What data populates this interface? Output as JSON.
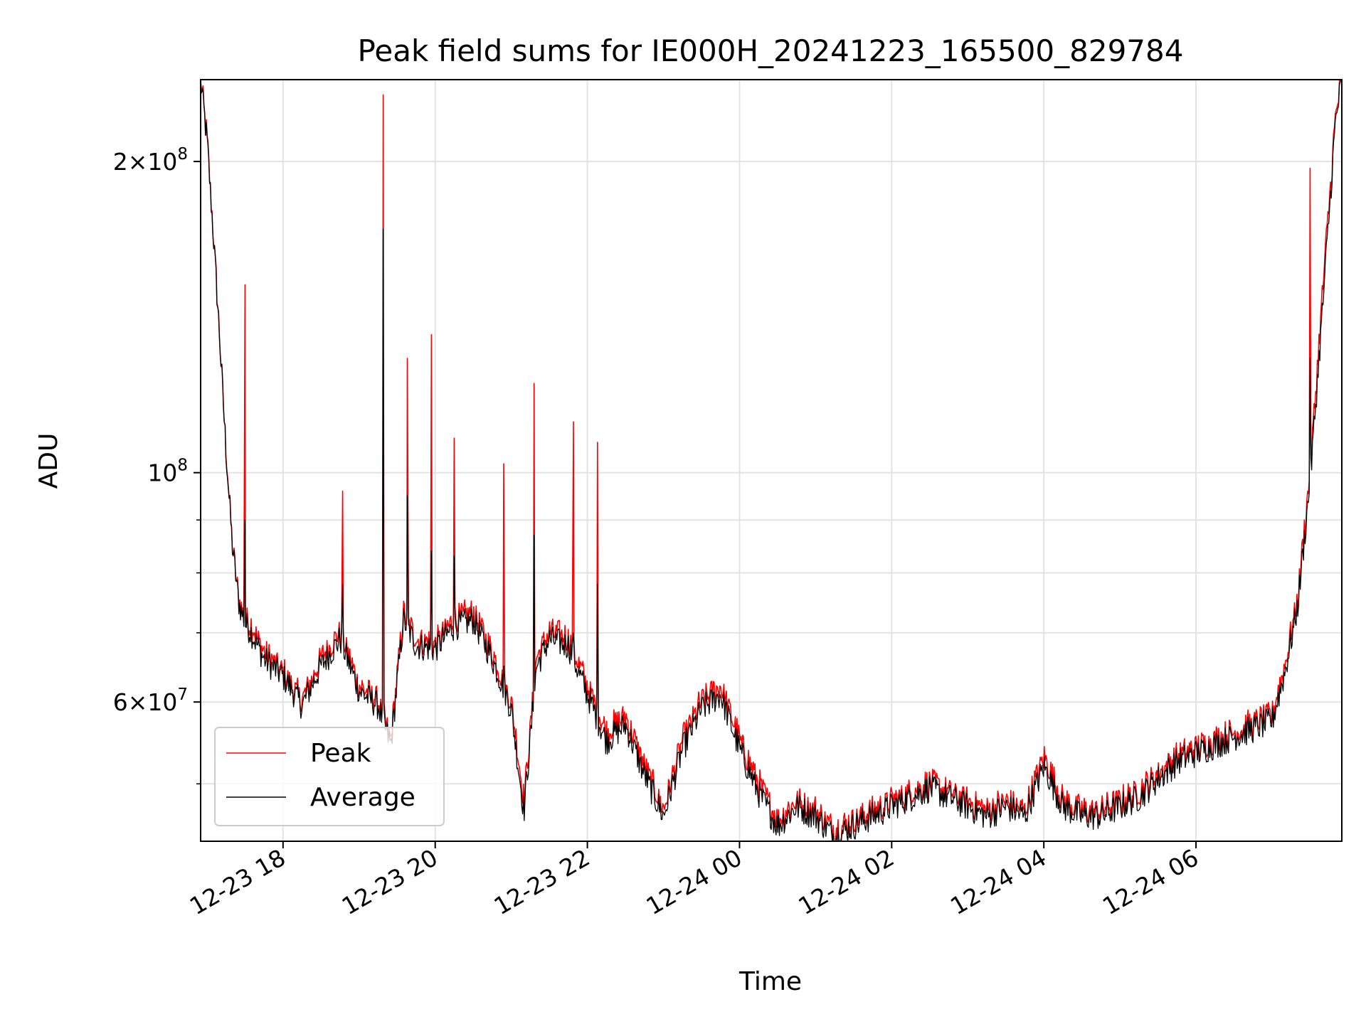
{
  "chart_data": {
    "type": "line",
    "title": "Peak field sums for IE000H_20241223_165500_829784",
    "xlabel": "Time",
    "ylabel": "ADU",
    "x_scale": "time",
    "y_scale": "log",
    "xlim": [
      "12-23 16:55",
      "12-24 07:55"
    ],
    "ylim": [
      44000000,
      240000000
    ],
    "grid": true,
    "legend_position": "lower-left",
    "x_tick_labels": [
      "12-23 18",
      "12-23 20",
      "12-23 22",
      "12-24 00",
      "12-24 02",
      "12-24 04",
      "12-24 06"
    ],
    "y_tick_labels": [
      {
        "value": 200000000,
        "mantissa": "2",
        "exponent": "8",
        "label": "2×10^8"
      },
      {
        "value": 100000000,
        "mantissa": "",
        "exponent": "8",
        "label": "10^8"
      },
      {
        "value": 60000000,
        "mantissa": "6",
        "exponent": "7",
        "label": "6×10^7"
      }
    ],
    "x": [
      "12-23 16:55",
      "12-23 17:00",
      "12-23 17:05",
      "12-23 17:10",
      "12-23 17:15",
      "12-23 17:20",
      "12-23 17:25",
      "12-23 17:30",
      "12-23 17:35",
      "12-23 17:45",
      "12-23 18:00",
      "12-23 18:15",
      "12-23 18:30",
      "12-23 18:45",
      "12-23 19:00",
      "12-23 19:15",
      "12-23 19:25",
      "12-23 19:35",
      "12-23 19:45",
      "12-23 20:00",
      "12-23 20:15",
      "12-23 20:30",
      "12-23 20:45",
      "12-23 20:55",
      "12-23 21:00",
      "12-23 21:10",
      "12-23 21:20",
      "12-23 21:30",
      "12-23 21:45",
      "12-23 22:00",
      "12-23 22:15",
      "12-23 22:30",
      "12-23 22:45",
      "12-23 23:00",
      "12-23 23:15",
      "12-23 23:30",
      "12-23 23:45",
      "12-24 00:00",
      "12-24 00:15",
      "12-24 00:30",
      "12-24 00:45",
      "12-24 01:00",
      "12-24 01:15",
      "12-24 01:30",
      "12-24 01:45",
      "12-24 02:00",
      "12-24 02:15",
      "12-24 02:30",
      "12-24 02:45",
      "12-24 03:00",
      "12-24 03:15",
      "12-24 03:30",
      "12-24 03:45",
      "12-24 04:00",
      "12-24 04:15",
      "12-24 04:30",
      "12-24 04:45",
      "12-24 05:00",
      "12-24 05:15",
      "12-24 05:30",
      "12-24 05:45",
      "12-24 06:00",
      "12-24 06:15",
      "12-24 06:30",
      "12-24 06:45",
      "12-24 07:00",
      "12-24 07:10",
      "12-24 07:20",
      "12-24 07:30",
      "12-24 07:40",
      "12-24 07:50",
      "12-24 07:55"
    ],
    "series": [
      {
        "name": "Peak",
        "color": "#ff0000",
        "values": [
          240000000,
          210000000,
          170000000,
          135000000,
          105000000,
          85000000,
          75000000,
          72000000,
          71000000,
          67000000,
          64000000,
          60000000,
          66000000,
          70000000,
          62000000,
          60000000,
          55000000,
          73000000,
          69000000,
          68000000,
          72000000,
          73000000,
          67000000,
          62000000,
          60000000,
          48000000,
          66000000,
          70000000,
          69000000,
          62000000,
          56000000,
          58000000,
          52000000,
          47000000,
          55000000,
          60000000,
          62000000,
          55000000,
          50000000,
          46000000,
          48000000,
          47000000,
          45000000,
          46000000,
          47000000,
          48000000,
          49000000,
          50000000,
          49000000,
          48000000,
          47000000,
          48000000,
          47000000,
          53000000,
          48000000,
          47000000,
          47000000,
          48000000,
          49000000,
          51000000,
          53000000,
          54000000,
          55000000,
          56000000,
          57000000,
          58000000,
          65000000,
          75000000,
          100000000,
          150000000,
          220000000,
          240000000
        ]
      },
      {
        "name": "Average",
        "color": "#000000",
        "values": [
          240000000,
          210000000,
          170000000,
          135000000,
          105000000,
          85000000,
          75000000,
          71500000,
          70000000,
          66000000,
          63500000,
          59500000,
          65000000,
          69000000,
          61500000,
          59500000,
          54500000,
          72000000,
          68000000,
          67500000,
          71000000,
          72000000,
          66000000,
          61500000,
          59000000,
          47000000,
          65000000,
          69000000,
          68000000,
          61000000,
          55000000,
          57000000,
          51000000,
          46500000,
          54000000,
          59000000,
          61000000,
          54000000,
          49000000,
          45500000,
          47500000,
          46500000,
          44500000,
          45500000,
          46500000,
          47500000,
          48500000,
          49500000,
          48500000,
          47500000,
          46500000,
          47500000,
          46500000,
          52000000,
          47500000,
          46500000,
          46500000,
          47500000,
          48500000,
          50500000,
          52500000,
          53500000,
          54500000,
          55500000,
          56500000,
          57500000,
          64000000,
          74000000,
          98000000,
          145000000,
          218000000,
          240000000
        ]
      }
    ],
    "spikes": [
      {
        "x": "12-23 17:30",
        "peak": 152000000,
        "average": 90000000
      },
      {
        "x": "12-23 18:47",
        "peak": 96000000,
        "average": 78000000
      },
      {
        "x": "12-23 19:19",
        "peak": 232000000,
        "average": 172000000
      },
      {
        "x": "12-23 19:38",
        "peak": 129000000,
        "average": 95000000
      },
      {
        "x": "12-23 19:57",
        "peak": 136000000,
        "average": 84000000
      },
      {
        "x": "12-23 20:15",
        "peak": 108000000,
        "average": 83000000
      },
      {
        "x": "12-23 20:54",
        "peak": 102000000,
        "average": 65000000
      },
      {
        "x": "12-23 21:18",
        "peak": 122000000,
        "average": 87000000
      },
      {
        "x": "12-23 21:49",
        "peak": 112000000,
        "average": 70000000
      },
      {
        "x": "12-23 22:08",
        "peak": 107000000,
        "average": 78000000
      },
      {
        "x": "12-24 07:30",
        "peak": 197000000,
        "average": 129000000
      }
    ]
  }
}
